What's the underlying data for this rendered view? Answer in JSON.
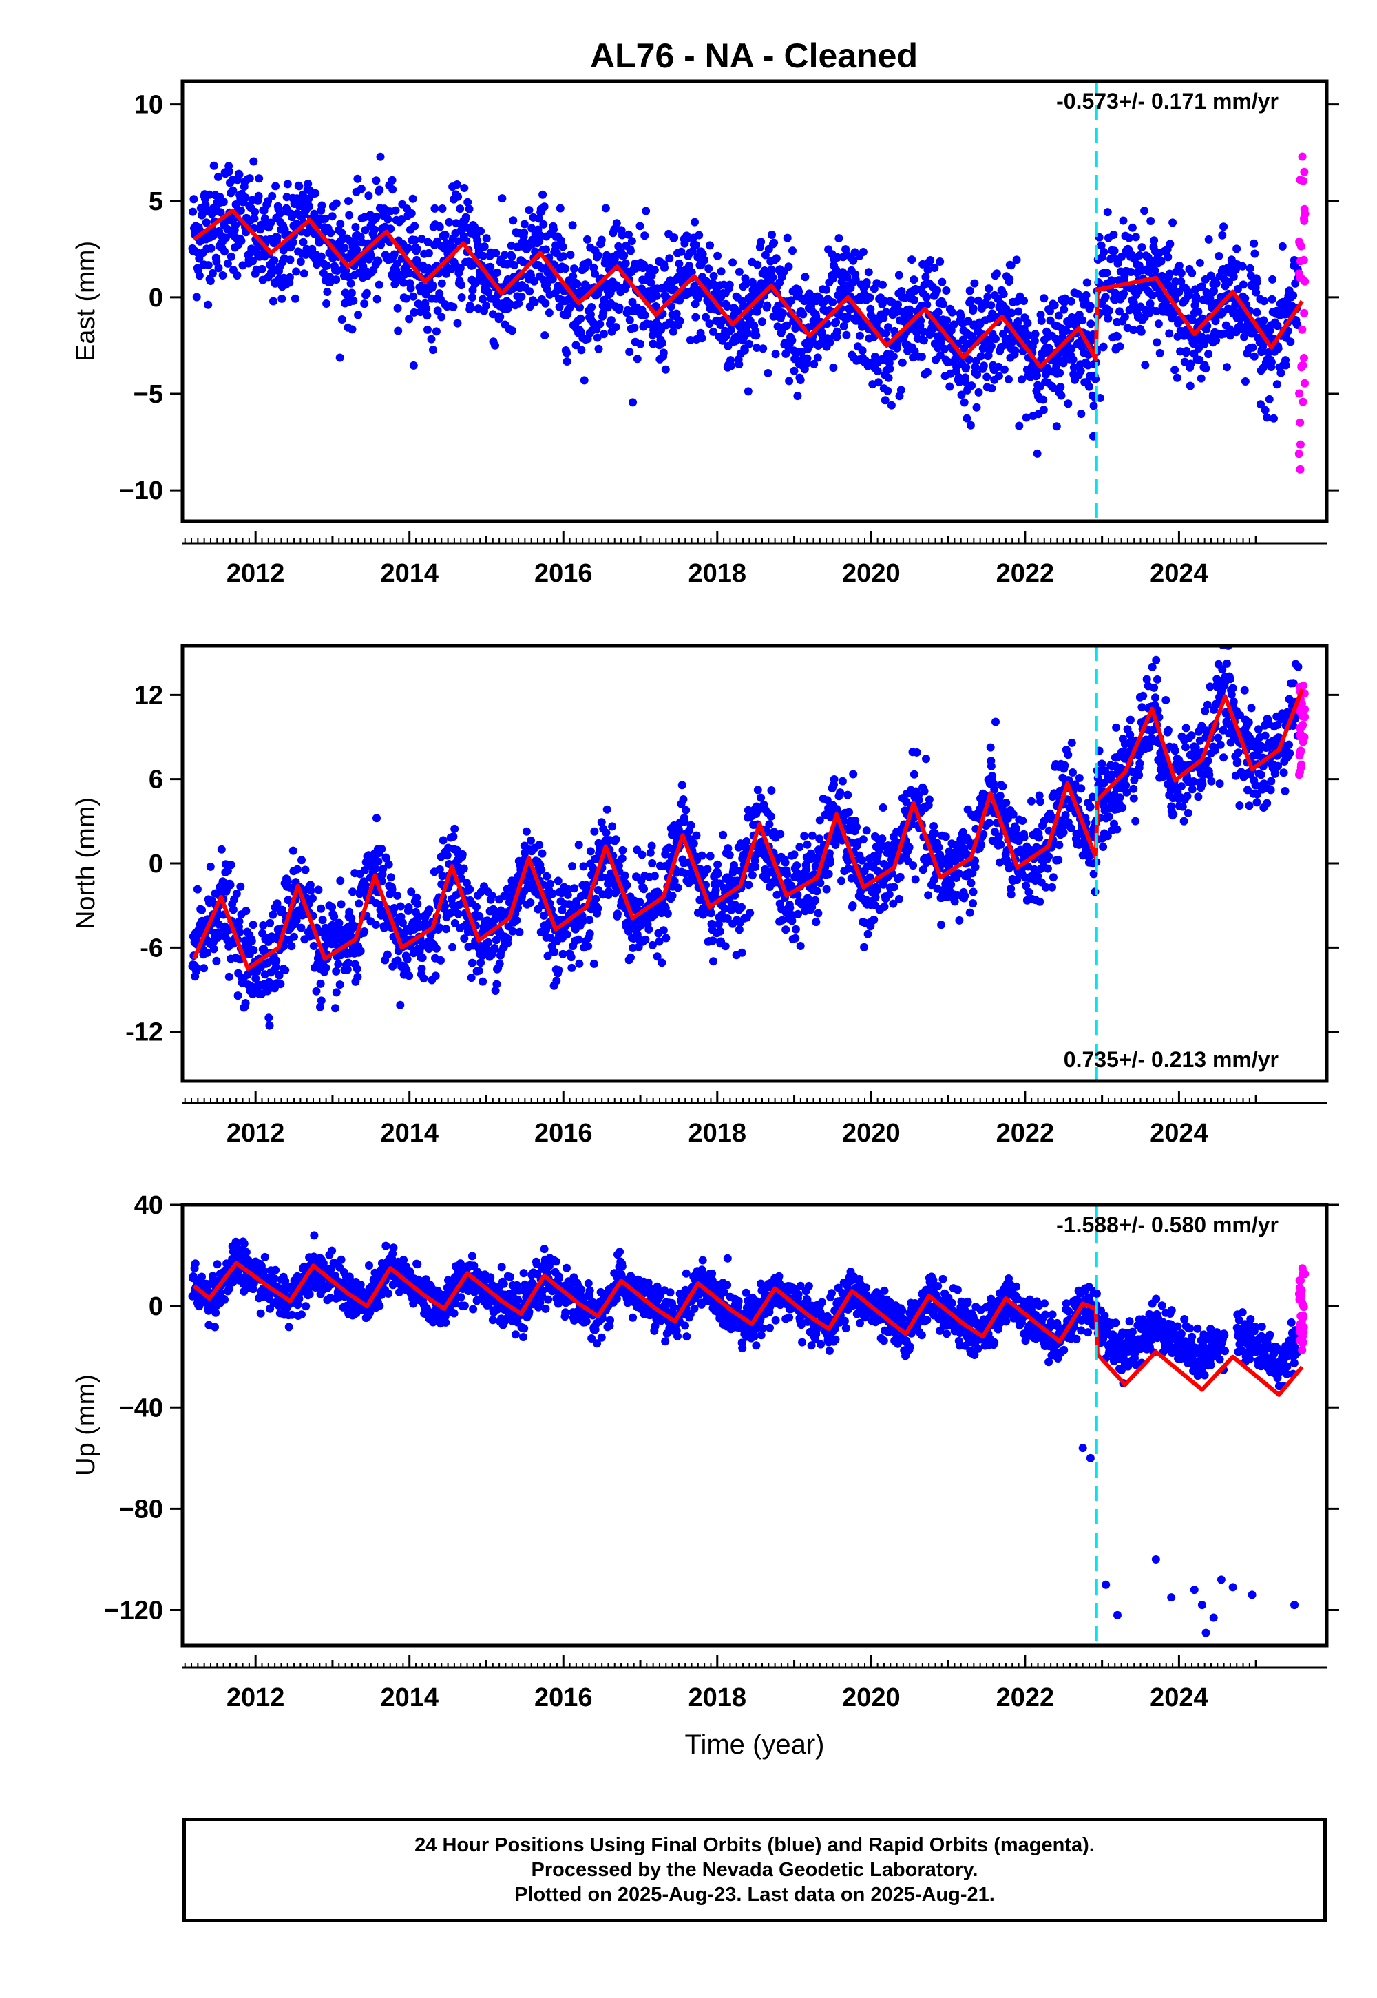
{
  "title": "AL76  - NA - Cleaned",
  "caption": {
    "lines": [
      "24 Hour Positions Using Final Orbits (blue) and Rapid Orbits (magenta).",
      "Processed by the Nevada Geodetic Laboratory.",
      "Plotted on 2025-Aug-23. Last data on 2025-Aug-21."
    ]
  },
  "colors": {
    "final": "#0000ff",
    "rapid": "#ff00ff",
    "model": "#ff0000",
    "break": "#00e5ee"
  },
  "chart_data": [
    {
      "type": "scatter",
      "component": "east",
      "ylabel": "East (mm)",
      "xlabel": "",
      "xlim": [
        2011.05,
        2025.92
      ],
      "ylim": [
        -11.6,
        11.2
      ],
      "xticks": [
        2012,
        2014,
        2016,
        2018,
        2020,
        2022,
        2024
      ],
      "yticks": [
        10,
        5,
        0,
        -5,
        -10
      ],
      "ytick_labels": [
        "10",
        "5",
        "0",
        "−5",
        "−10"
      ],
      "rate_text": "-0.573+/- 0.171 mm/yr",
      "rate_position": "top-right",
      "break_epoch": 2022.93,
      "series": [
        {
          "kind": "final-daily",
          "x_start": 2011.18,
          "x_end": 2025.55,
          "trend_mm_per_yr": -0.4,
          "value_at_2011_2": 3.0,
          "annual_amplitude": 1.3,
          "scatter_sd": 1.5
        },
        {
          "kind": "rapid-daily",
          "x_start": 2025.56,
          "x_end": 2025.64,
          "y_range": [
            -9.3,
            7.5
          ]
        },
        {
          "kind": "model",
          "x": [
            2011.2,
            2011.7,
            2012.2,
            2012.7,
            2013.2,
            2013.7,
            2014.2,
            2014.7,
            2015.2,
            2015.7,
            2016.2,
            2016.7,
            2017.2,
            2017.7,
            2018.2,
            2018.7,
            2019.2,
            2019.7,
            2020.2,
            2020.7,
            2021.2,
            2021.7,
            2022.2,
            2022.7,
            2022.92,
            2022.94,
            2023.7,
            2024.2,
            2024.7,
            2025.2,
            2025.6
          ],
          "y": [
            3.0,
            4.5,
            2.3,
            4.0,
            1.6,
            3.4,
            0.8,
            2.8,
            0.2,
            2.3,
            -0.3,
            1.6,
            -0.9,
            1.1,
            -1.4,
            0.6,
            -2.0,
            0.0,
            -2.5,
            -0.6,
            -3.1,
            -1.0,
            -3.6,
            -1.6,
            -3.2,
            0.4,
            1.0,
            -1.9,
            0.3,
            -2.6,
            -0.2
          ]
        }
      ]
    },
    {
      "type": "scatter",
      "component": "north",
      "ylabel": "North (mm)",
      "xlabel": "",
      "xlim": [
        2011.05,
        2025.92
      ],
      "ylim": [
        -15.5,
        15.5
      ],
      "xticks": [
        2012,
        2014,
        2016,
        2018,
        2020,
        2022,
        2024
      ],
      "yticks": [
        12,
        6,
        0,
        -6,
        -12
      ],
      "ytick_labels": [
        "12",
        "6",
        "0",
        "-6",
        "-12"
      ],
      "rate_text": "0.735+/- 0.213 mm/yr",
      "rate_position": "bottom-right",
      "break_epoch": 2022.93,
      "series": [
        {
          "kind": "final-daily",
          "x_start": 2011.18,
          "x_end": 2025.55,
          "trend_mm_per_yr": 0.62,
          "value_at_2011_2": -5.5,
          "annual_amplitude": 2.6,
          "scatter_sd": 1.7
        },
        {
          "kind": "rapid-daily",
          "x_start": 2025.56,
          "x_end": 2025.64,
          "y_range": [
            5.8,
            13.2
          ]
        },
        {
          "kind": "model",
          "x": [
            2011.2,
            2011.55,
            2011.9,
            2012.3,
            2012.55,
            2012.9,
            2013.3,
            2013.55,
            2013.9,
            2014.3,
            2014.55,
            2014.9,
            2015.3,
            2015.55,
            2015.9,
            2016.3,
            2016.55,
            2016.9,
            2017.3,
            2017.55,
            2017.9,
            2018.3,
            2018.55,
            2018.9,
            2019.3,
            2019.55,
            2019.9,
            2020.3,
            2020.55,
            2020.9,
            2021.3,
            2021.55,
            2021.9,
            2022.3,
            2022.55,
            2022.92,
            2022.94,
            2023.3,
            2023.65,
            2023.95,
            2024.3,
            2024.6,
            2024.95,
            2025.3,
            2025.6
          ],
          "y": [
            -6.8,
            -2.4,
            -7.5,
            -6.0,
            -1.6,
            -6.8,
            -5.4,
            -0.9,
            -6.0,
            -4.6,
            -0.2,
            -5.5,
            -3.9,
            0.4,
            -4.7,
            -3.1,
            1.2,
            -3.9,
            -2.4,
            2.0,
            -3.1,
            -1.6,
            2.8,
            -2.3,
            -1.0,
            3.5,
            -1.7,
            -0.3,
            4.3,
            -1.0,
            0.4,
            5.0,
            -0.3,
            1.2,
            5.7,
            0.4,
            4.5,
            6.5,
            11.0,
            5.9,
            7.4,
            11.9,
            6.7,
            8.1,
            12.4
          ]
        }
      ]
    },
    {
      "type": "scatter",
      "component": "up",
      "ylabel": "Up (mm)",
      "xlabel": "Time (year)",
      "xlim": [
        2011.05,
        2025.92
      ],
      "ylim": [
        -134,
        40
      ],
      "xticks": [
        2012,
        2014,
        2016,
        2018,
        2020,
        2022,
        2024
      ],
      "yticks": [
        40,
        0,
        -40,
        -80,
        -120
      ],
      "ytick_labels": [
        "40",
        "0",
        "−40",
        "−80",
        "−120"
      ],
      "rate_text": "-1.588+/- 0.580 mm/yr",
      "rate_position": "top-right",
      "break_epoch": 2022.93,
      "series": [
        {
          "kind": "final-daily",
          "x_start": 2011.18,
          "x_end": 2025.55,
          "trend_mm_per_yr": -1.0,
          "value_at_2011_2": 9.0,
          "annual_amplitude": 6.0,
          "scatter_sd": 4.5
        },
        {
          "kind": "final-outliers",
          "x": [
            2022.75,
            2022.85,
            2023.05,
            2023.2,
            2023.7,
            2023.9,
            2024.2,
            2024.3,
            2024.35,
            2024.45,
            2024.55,
            2024.7,
            2024.95,
            2025.5
          ],
          "y": [
            -56,
            -60,
            -110,
            -122,
            -100,
            -115,
            -112,
            -118,
            -129,
            -123,
            -108,
            -111,
            -114,
            -118
          ]
        },
        {
          "kind": "rapid-daily",
          "x_start": 2025.56,
          "x_end": 2025.64,
          "y_range": [
            -18,
            16
          ]
        },
        {
          "kind": "model",
          "x": [
            2011.2,
            2011.4,
            2011.75,
            2012.2,
            2012.45,
            2012.75,
            2013.2,
            2013.45,
            2013.75,
            2014.2,
            2014.45,
            2014.75,
            2015.2,
            2015.45,
            2015.75,
            2016.2,
            2016.45,
            2016.75,
            2017.2,
            2017.45,
            2017.75,
            2018.2,
            2018.45,
            2018.75,
            2019.2,
            2019.45,
            2019.75,
            2020.2,
            2020.45,
            2020.75,
            2021.2,
            2021.45,
            2021.75,
            2022.2,
            2022.45,
            2022.75,
            2022.92,
            2022.94,
            2023.3,
            2023.7,
            2024.3,
            2024.7,
            2025.3,
            2025.6
          ],
          "y": [
            8,
            3,
            17,
            7,
            2,
            16,
            5,
            0,
            15,
            4,
            -1,
            13,
            2,
            -3,
            12,
            1,
            -4,
            10,
            -1,
            -6,
            9,
            -2,
            -7,
            7,
            -4,
            -9,
            6,
            -5,
            -11,
            4,
            -7,
            -12,
            3,
            -8,
            -14,
            1,
            -1,
            -19,
            -31,
            -18,
            -33,
            -20,
            -35,
            -24
          ]
        }
      ]
    }
  ]
}
